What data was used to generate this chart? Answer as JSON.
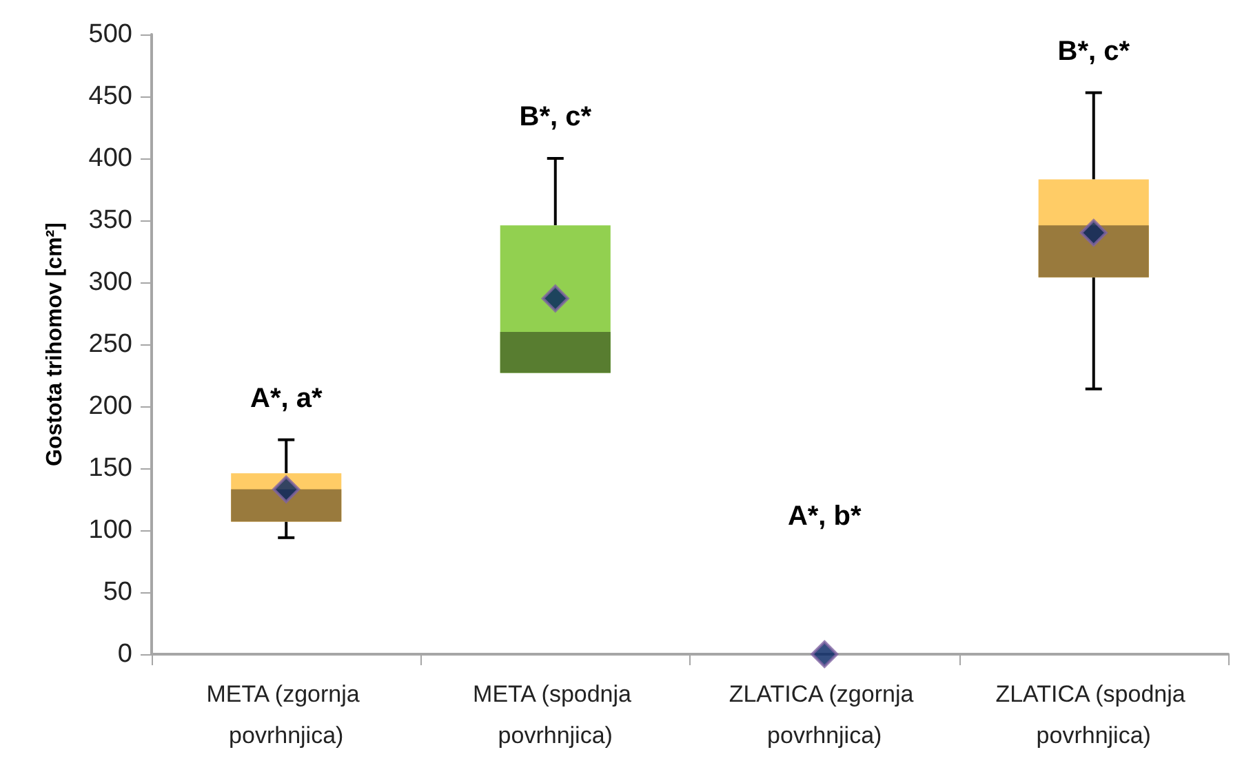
{
  "chart_data": {
    "type": "box",
    "ylabel": "Gostota trihomov [cm²]",
    "categories": [
      "META (zgornja povrhnjica)",
      "META (spodnja povrhnjica)",
      "ZLATICA (zgornja povrhnjica)",
      "ZLATICA (spodnja povrhnjica)"
    ],
    "series": [
      {
        "type": "box",
        "colors": [
          "#ffcc66",
          "#92d050",
          null,
          "#ffcc66"
        ],
        "boxes": [
          {
            "low": 94,
            "q1": 107,
            "median": 133,
            "q3": 146,
            "high": 173
          },
          {
            "low": 227,
            "q1": 227,
            "median": 260,
            "q3": 346,
            "high": 400
          },
          null,
          {
            "low": 214,
            "q1": 304,
            "median": 346,
            "q3": 383,
            "high": 453
          }
        ]
      },
      {
        "type": "scatter",
        "color": "#002060",
        "marker": "diamond",
        "x": [
          "META (zgornja povrhnjica)",
          "META (spodnja povrhnjica)",
          "ZLATICA (zgornja povrhnjica)",
          "ZLATICA (spodnja povrhnjica)"
        ],
        "values": [
          133,
          287,
          0,
          340
        ]
      }
    ],
    "ylim": [
      0,
      500
    ],
    "yticks": [
      0,
      50,
      100,
      150,
      200,
      250,
      300,
      350,
      400,
      450,
      500
    ],
    "grid": false,
    "annotations": [
      "A*, a*",
      "B*, c*",
      "A*, b*",
      "B*, c*"
    ]
  }
}
